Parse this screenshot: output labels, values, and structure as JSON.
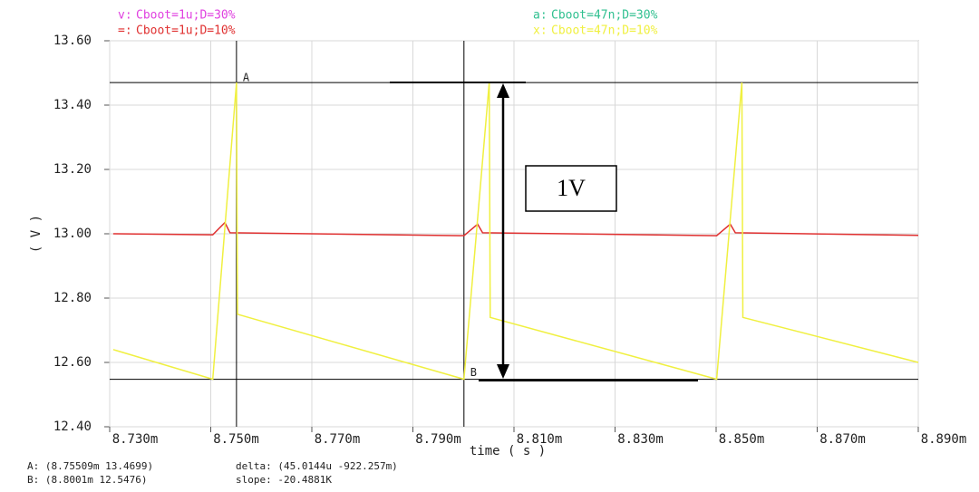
{
  "chart_data": {
    "type": "line",
    "xlabel": "time ( s )",
    "ylabel": "( V )",
    "xlim": [
      8.73,
      8.89
    ],
    "ylim": [
      12.4,
      13.6
    ],
    "xticks": [
      {
        "value": 8.73,
        "label": "8.730m"
      },
      {
        "value": 8.75,
        "label": "8.750m"
      },
      {
        "value": 8.77,
        "label": "8.770m"
      },
      {
        "value": 8.79,
        "label": "8.790m"
      },
      {
        "value": 8.81,
        "label": "8.810m"
      },
      {
        "value": 8.83,
        "label": "8.830m"
      },
      {
        "value": 8.85,
        "label": "8.850m"
      },
      {
        "value": 8.87,
        "label": "8.870m"
      },
      {
        "value": 8.89,
        "label": "8.890m"
      }
    ],
    "yticks": [
      {
        "value": 12.4,
        "label": "12.40"
      },
      {
        "value": 12.6,
        "label": "12.60"
      },
      {
        "value": 12.8,
        "label": "12.80"
      },
      {
        "value": 13.0,
        "label": "13.00"
      },
      {
        "value": 13.2,
        "label": "13.20"
      },
      {
        "value": 13.4,
        "label": "13.40"
      },
      {
        "value": 13.6,
        "label": "13.60"
      }
    ],
    "grid": true,
    "series": [
      {
        "name": "Cboot=1u;D=30%",
        "marker": "v:",
        "color": "#e040e0",
        "x": [],
        "values": []
      },
      {
        "name": "Cboot=1u;D=10%",
        "marker": "=:",
        "color": "#e03030",
        "x": [
          8.7307,
          8.7504,
          8.7528,
          8.7538,
          8.8001,
          8.8028,
          8.8038,
          8.8501,
          8.8528,
          8.8538,
          8.89
        ],
        "values": [
          13.0,
          12.997,
          13.035,
          13.003,
          12.994,
          13.03,
          13.003,
          12.994,
          13.03,
          13.003,
          12.995
        ]
      },
      {
        "name": "Cboot=47n;D=30%",
        "marker": "a:",
        "color": "#30c090",
        "x": [],
        "values": []
      },
      {
        "name": "Cboot=47n;D=10%",
        "marker": "x:",
        "color": "#f0f040",
        "x": [
          8.7307,
          8.7504,
          8.7551,
          8.7553,
          8.8001,
          8.8051,
          8.8053,
          8.8501,
          8.8551,
          8.8553,
          8.89
        ],
        "values": [
          12.64,
          12.548,
          13.47,
          12.75,
          12.548,
          13.47,
          12.74,
          12.548,
          13.47,
          12.74,
          12.6
        ]
      }
    ],
    "cursors": [
      {
        "label": "A",
        "x": 8.75509,
        "y": 13.4699
      },
      {
        "label": "B",
        "x": 8.8001,
        "y": 12.5476
      }
    ],
    "annotation": "1V",
    "readout": [
      "A: (8.75509m 13.4699)",
      "delta: (45.0144u -922.257m)",
      "B: (8.8001m 12.5476)",
      "slope: -20.4881K"
    ]
  }
}
